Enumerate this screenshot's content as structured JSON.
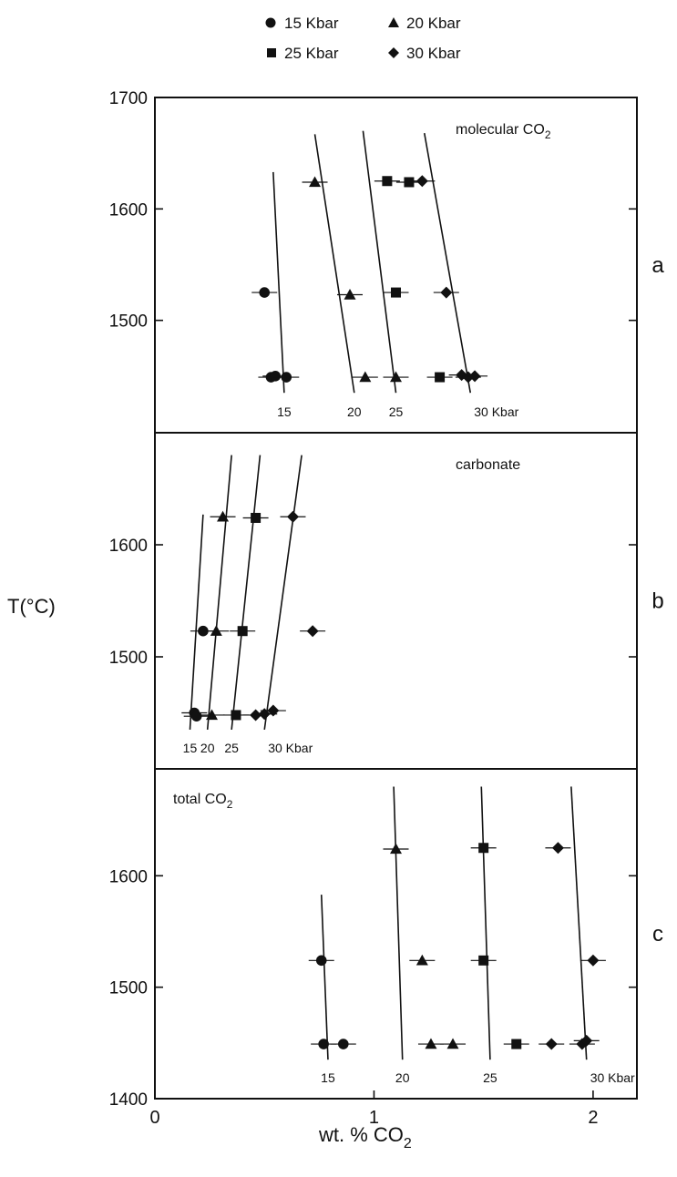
{
  "legend": {
    "entries": [
      {
        "label": "15 Kbar",
        "marker": "circle"
      },
      {
        "label": "20 Kbar",
        "marker": "triangle"
      },
      {
        "label": "25 Kbar",
        "marker": "square"
      },
      {
        "label": "30 Kbar",
        "marker": "diamond"
      }
    ]
  },
  "axes": {
    "ylabel": "T(°C)",
    "xlabel_main": "wt. % CO",
    "xlabel_sub": "2"
  },
  "chart_data": {
    "type": "scatter",
    "xlim": [
      0,
      2.2
    ],
    "xticks": [
      "0",
      "1",
      "2"
    ],
    "grid": false,
    "legend_placement": "top",
    "panels": [
      {
        "id": "a",
        "letter": "a",
        "title_main": "molecular CO",
        "title_sub": "2",
        "ylim": [
          1400,
          1700
        ],
        "yticks": [
          "1700",
          "1600",
          "1500"
        ],
        "series": [
          {
            "name": "15 Kbar",
            "marker": "circle",
            "points": [
              [
                0.5,
                1525
              ],
              [
                0.53,
                1449
              ],
              [
                0.55,
                1450
              ],
              [
                0.6,
                1449
              ]
            ]
          },
          {
            "name": "20 Kbar",
            "marker": "triangle",
            "points": [
              [
                0.73,
                1624
              ],
              [
                0.89,
                1523
              ],
              [
                0.96,
                1449
              ],
              [
                1.1,
                1449
              ]
            ]
          },
          {
            "name": "25 Kbar",
            "marker": "square",
            "points": [
              [
                1.06,
                1625
              ],
              [
                1.1,
                1525
              ],
              [
                1.16,
                1624
              ],
              [
                1.3,
                1449
              ]
            ]
          },
          {
            "name": "30 Kbar",
            "marker": "diamond",
            "points": [
              [
                1.22,
                1625
              ],
              [
                1.33,
                1525
              ],
              [
                1.4,
                1451
              ],
              [
                1.43,
                1449
              ],
              [
                1.46,
                1450
              ]
            ]
          }
        ],
        "trend_lines": [
          {
            "label": "15",
            "from": [
              0.59,
              1435
            ],
            "to": [
              0.54,
              1633
            ]
          },
          {
            "label": "20",
            "from": [
              0.91,
              1435
            ],
            "to": [
              0.73,
              1667
            ]
          },
          {
            "label": "25",
            "from": [
              1.1,
              1435
            ],
            "to": [
              0.95,
              1670
            ]
          },
          {
            "label": "30 Kbar",
            "from": [
              1.44,
              1435
            ],
            "to": [
              1.23,
              1668
            ]
          }
        ]
      },
      {
        "id": "b",
        "letter": "b",
        "title_main": "carbonate",
        "title_sub": "",
        "ylim": [
          1400,
          1700
        ],
        "yticks": [
          "1600",
          "1500"
        ],
        "series": [
          {
            "name": "15 Kbar",
            "marker": "circle",
            "points": [
              [
                0.18,
                1450
              ],
              [
                0.19,
                1447
              ],
              [
                0.22,
                1523
              ]
            ]
          },
          {
            "name": "20 Kbar",
            "marker": "triangle",
            "points": [
              [
                0.26,
                1448
              ],
              [
                0.28,
                1523
              ],
              [
                0.31,
                1625
              ]
            ]
          },
          {
            "name": "25 Kbar",
            "marker": "square",
            "points": [
              [
                0.37,
                1448
              ],
              [
                0.4,
                1523
              ],
              [
                0.46,
                1624
              ]
            ]
          },
          {
            "name": "30 Kbar",
            "marker": "diamond",
            "points": [
              [
                0.46,
                1448
              ],
              [
                0.5,
                1449
              ],
              [
                0.54,
                1452
              ],
              [
                0.63,
                1625
              ],
              [
                0.72,
                1523
              ]
            ]
          }
        ],
        "trend_lines": [
          {
            "label": "15",
            "from": [
              0.16,
              1435
            ],
            "to": [
              0.22,
              1627
            ]
          },
          {
            "label": "20",
            "from": [
              0.24,
              1435
            ],
            "to": [
              0.35,
              1680
            ]
          },
          {
            "label": "25",
            "from": [
              0.35,
              1435
            ],
            "to": [
              0.48,
              1680
            ]
          },
          {
            "label": "30 Kbar",
            "from": [
              0.5,
              1435
            ],
            "to": [
              0.67,
              1680
            ]
          }
        ]
      },
      {
        "id": "c",
        "letter": "c",
        "title_main": "total CO",
        "title_sub": "2",
        "ylim": [
          1400,
          1700
        ],
        "yticks": [
          "1600",
          "1500",
          "1400"
        ],
        "series": [
          {
            "name": "15 Kbar",
            "marker": "circle",
            "points": [
              [
                0.76,
                1524
              ],
              [
                0.77,
                1449
              ],
              [
                0.86,
                1449
              ]
            ]
          },
          {
            "name": "20 Kbar",
            "marker": "triangle",
            "points": [
              [
                1.1,
                1624
              ],
              [
                1.22,
                1524
              ],
              [
                1.26,
                1449
              ],
              [
                1.36,
                1449
              ]
            ]
          },
          {
            "name": "25 Kbar",
            "marker": "square",
            "points": [
              [
                1.5,
                1625
              ],
              [
                1.5,
                1524
              ],
              [
                1.65,
                1449
              ]
            ]
          },
          {
            "name": "30 Kbar",
            "marker": "diamond",
            "points": [
              [
                1.81,
                1449
              ],
              [
                1.84,
                1625
              ],
              [
                1.95,
                1449
              ],
              [
                1.97,
                1452
              ],
              [
                2.0,
                1524
              ]
            ]
          }
        ],
        "trend_lines": [
          {
            "label": "15",
            "from": [
              0.79,
              1435
            ],
            "to": [
              0.76,
              1583
            ]
          },
          {
            "label": "20",
            "from": [
              1.13,
              1435
            ],
            "to": [
              1.09,
              1680
            ]
          },
          {
            "label": "25",
            "from": [
              1.53,
              1435
            ],
            "to": [
              1.49,
              1680
            ]
          },
          {
            "label": "30 Kbar",
            "from": [
              1.97,
              1435
            ],
            "to": [
              1.9,
              1680
            ]
          }
        ]
      }
    ]
  }
}
